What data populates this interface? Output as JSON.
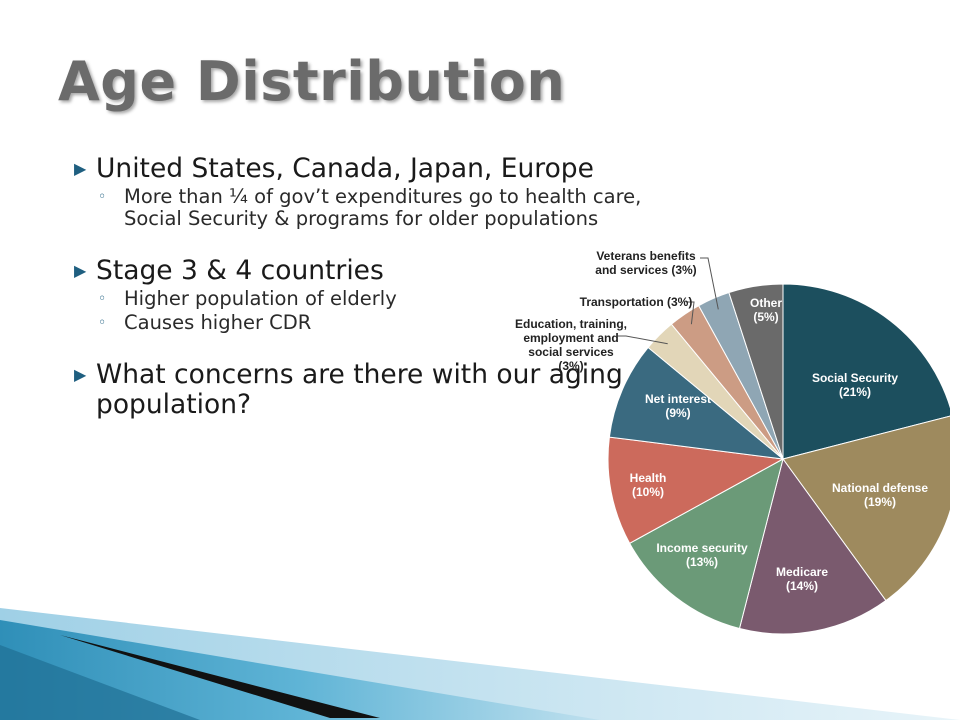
{
  "slide": {
    "title": "Age Distribution",
    "bullets": [
      {
        "text": "United States, Canada, Japan, Europe",
        "subs": [
          "More than ¼ of gov’t expenditures go to health care,",
          "Social Security & programs for older populations"
        ]
      },
      {
        "text": "Stage 3 & 4 countries",
        "subs": [
          "Higher population of elderly",
          "Causes higher CDR"
        ]
      },
      {
        "text": "What concerns are there with our aging",
        "cont": "population?"
      }
    ]
  },
  "chart_data": {
    "type": "pie",
    "slices": [
      {
        "label": [
          "Social Security",
          "(21%)"
        ],
        "value": 21,
        "color": "#1c4f5e"
      },
      {
        "label": [
          "National defense",
          "(19%)"
        ],
        "value": 19,
        "color": "#9e8a5e"
      },
      {
        "label": [
          "Medicare",
          "(14%)"
        ],
        "value": 14,
        "color": "#7a5a6e"
      },
      {
        "label": [
          "Income security",
          "(13%)"
        ],
        "value": 13,
        "color": "#6b9a78"
      },
      {
        "label": [
          "Health",
          "(10%)"
        ],
        "value": 10,
        "color": "#cc6a5c"
      },
      {
        "label": [
          "Net interest",
          "(9%)"
        ],
        "value": 9,
        "color": "#3a6a80"
      },
      {
        "label": [
          "Education, training,",
          "employment and",
          "social services",
          "(3%)"
        ],
        "value": 3,
        "color": "#e2d6b8"
      },
      {
        "label": [
          "Transportation (3%)"
        ],
        "value": 3,
        "color": "#cc9c84"
      },
      {
        "label": [
          "Veterans benefits",
          "and services (3%)"
        ],
        "value": 3,
        "color": "#8fa6b4"
      },
      {
        "label": [
          "Other",
          "(5%)"
        ],
        "value": 5,
        "color": "#6a6a6a"
      }
    ]
  }
}
